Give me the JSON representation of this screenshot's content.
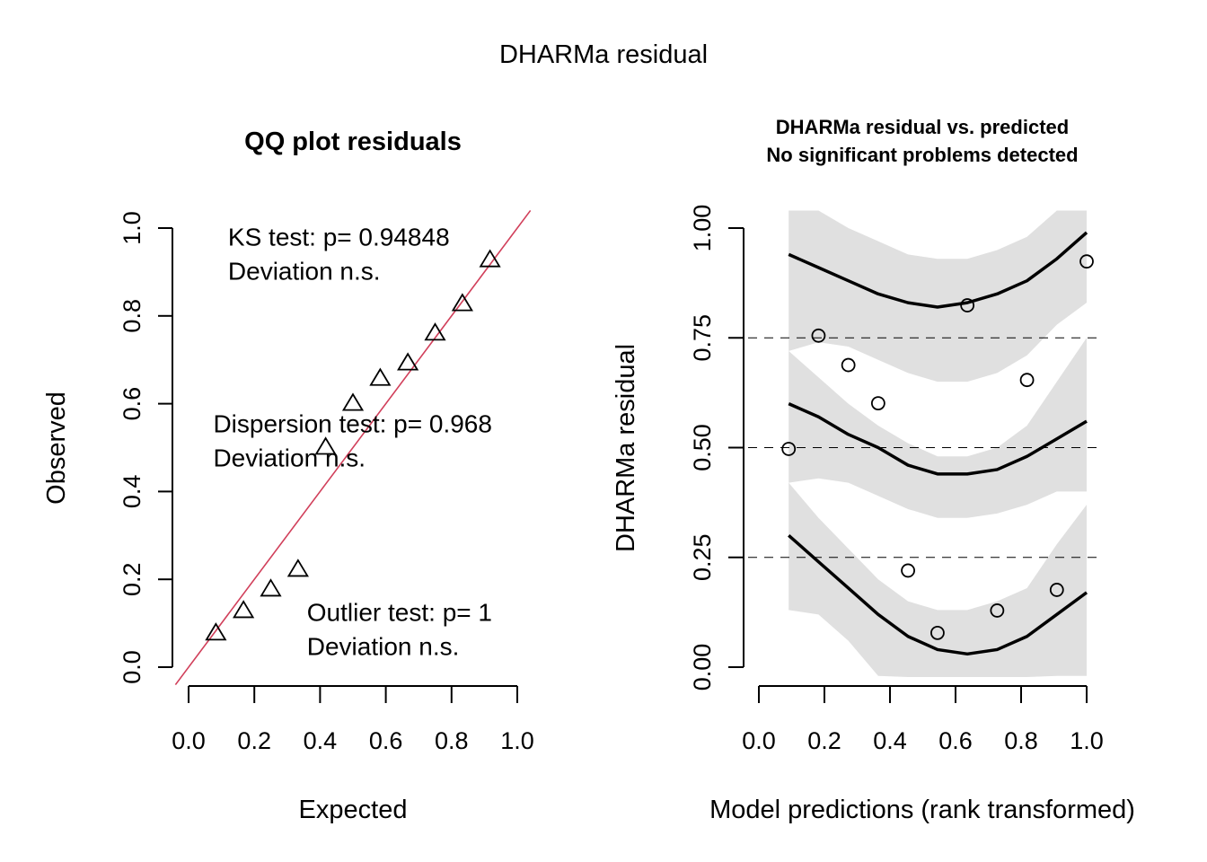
{
  "chart_data": [
    {
      "type": "scatter",
      "title": "QQ plot residuals",
      "xlabel": "Expected",
      "ylabel": "Observed",
      "xlim": [
        0,
        1
      ],
      "ylim": [
        0,
        1
      ],
      "xticks": [
        "0.0",
        "0.2",
        "0.4",
        "0.6",
        "0.8",
        "1.0"
      ],
      "yticks": [
        "0.0",
        "0.2",
        "0.4",
        "0.6",
        "0.8",
        "1.0"
      ],
      "marker": "triangle",
      "reference_line": {
        "slope": 1,
        "intercept": 0,
        "color": "#d13f5a"
      },
      "points": {
        "x": [
          0.083,
          0.167,
          0.25,
          0.333,
          0.417,
          0.5,
          0.583,
          0.667,
          0.75,
          0.833,
          0.917
        ],
        "y": [
          0.078,
          0.129,
          0.178,
          0.223,
          0.501,
          0.601,
          0.658,
          0.693,
          0.761,
          0.828,
          0.928
        ]
      },
      "annotations": [
        {
          "lines": [
            "KS test: p= 0.94848",
            "Deviation  n.s."
          ],
          "x": 0.12,
          "y": 0.96
        },
        {
          "lines": [
            "Dispersion test: p= 0.968",
            "Deviation  n.s."
          ],
          "x": 0.075,
          "y": 0.535
        },
        {
          "lines": [
            "Outlier test: p= 1",
            "Deviation  n.s."
          ],
          "x": 0.36,
          "y": 0.105
        }
      ]
    },
    {
      "type": "scatter",
      "title": [
        "DHARMa residual vs. predicted",
        "No significant problems detected"
      ],
      "xlabel": "Model predictions (rank transformed)",
      "ylabel": "DHARMa residual",
      "xlim": [
        0,
        1
      ],
      "ylim": [
        0,
        1
      ],
      "xticks": [
        "0.0",
        "0.2",
        "0.4",
        "0.6",
        "0.8",
        "1.0"
      ],
      "yticks": [
        "0.00",
        "0.25",
        "0.50",
        "0.75",
        "1.00"
      ],
      "hlines": [
        0.25,
        0.5,
        0.75
      ],
      "marker": "circle",
      "points": {
        "x": [
          0.091,
          0.182,
          0.273,
          0.364,
          0.455,
          0.545,
          0.636,
          0.727,
          0.818,
          0.909,
          1.0
        ],
        "y": [
          0.497,
          0.755,
          0.688,
          0.601,
          0.22,
          0.078,
          0.824,
          0.129,
          0.654,
          0.176,
          0.924
        ]
      },
      "quantile_x": [
        0.091,
        0.182,
        0.273,
        0.364,
        0.455,
        0.545,
        0.636,
        0.727,
        0.818,
        0.909,
        1.0
      ],
      "quantile_lines": [
        {
          "name": "q0.75",
          "values": [
            0.94,
            0.91,
            0.88,
            0.85,
            0.83,
            0.82,
            0.83,
            0.85,
            0.88,
            0.93,
            0.99
          ]
        },
        {
          "name": "q0.50",
          "values": [
            0.6,
            0.57,
            0.53,
            0.5,
            0.46,
            0.44,
            0.44,
            0.45,
            0.48,
            0.52,
            0.56
          ]
        },
        {
          "name": "q0.25",
          "values": [
            0.3,
            0.24,
            0.18,
            0.12,
            0.07,
            0.04,
            0.03,
            0.04,
            0.07,
            0.12,
            0.17
          ]
        }
      ],
      "bands": [
        {
          "name": "band-upper",
          "upper": [
            1.04,
            1.04,
            1.0,
            0.97,
            0.94,
            0.93,
            0.93,
            0.95,
            0.98,
            1.04,
            1.04
          ],
          "lower": [
            0.72,
            0.74,
            0.73,
            0.7,
            0.67,
            0.65,
            0.65,
            0.67,
            0.71,
            0.78,
            0.83
          ]
        },
        {
          "name": "band-middle",
          "upper": [
            0.72,
            0.66,
            0.6,
            0.55,
            0.51,
            0.48,
            0.48,
            0.5,
            0.55,
            0.65,
            0.75
          ],
          "lower": [
            0.42,
            0.43,
            0.42,
            0.39,
            0.36,
            0.34,
            0.34,
            0.35,
            0.37,
            0.4,
            0.4
          ]
        },
        {
          "name": "band-lower",
          "upper": [
            0.42,
            0.34,
            0.27,
            0.2,
            0.15,
            0.13,
            0.13,
            0.15,
            0.18,
            0.28,
            0.37
          ],
          "lower": [
            0.13,
            0.12,
            0.06,
            -0.02,
            -0.04,
            -0.04,
            -0.04,
            -0.04,
            -0.03,
            -0.02,
            -0.02
          ]
        }
      ],
      "band_color": "#e0e0e0"
    }
  ],
  "page": {
    "suptitle": "DHARMa residual"
  }
}
